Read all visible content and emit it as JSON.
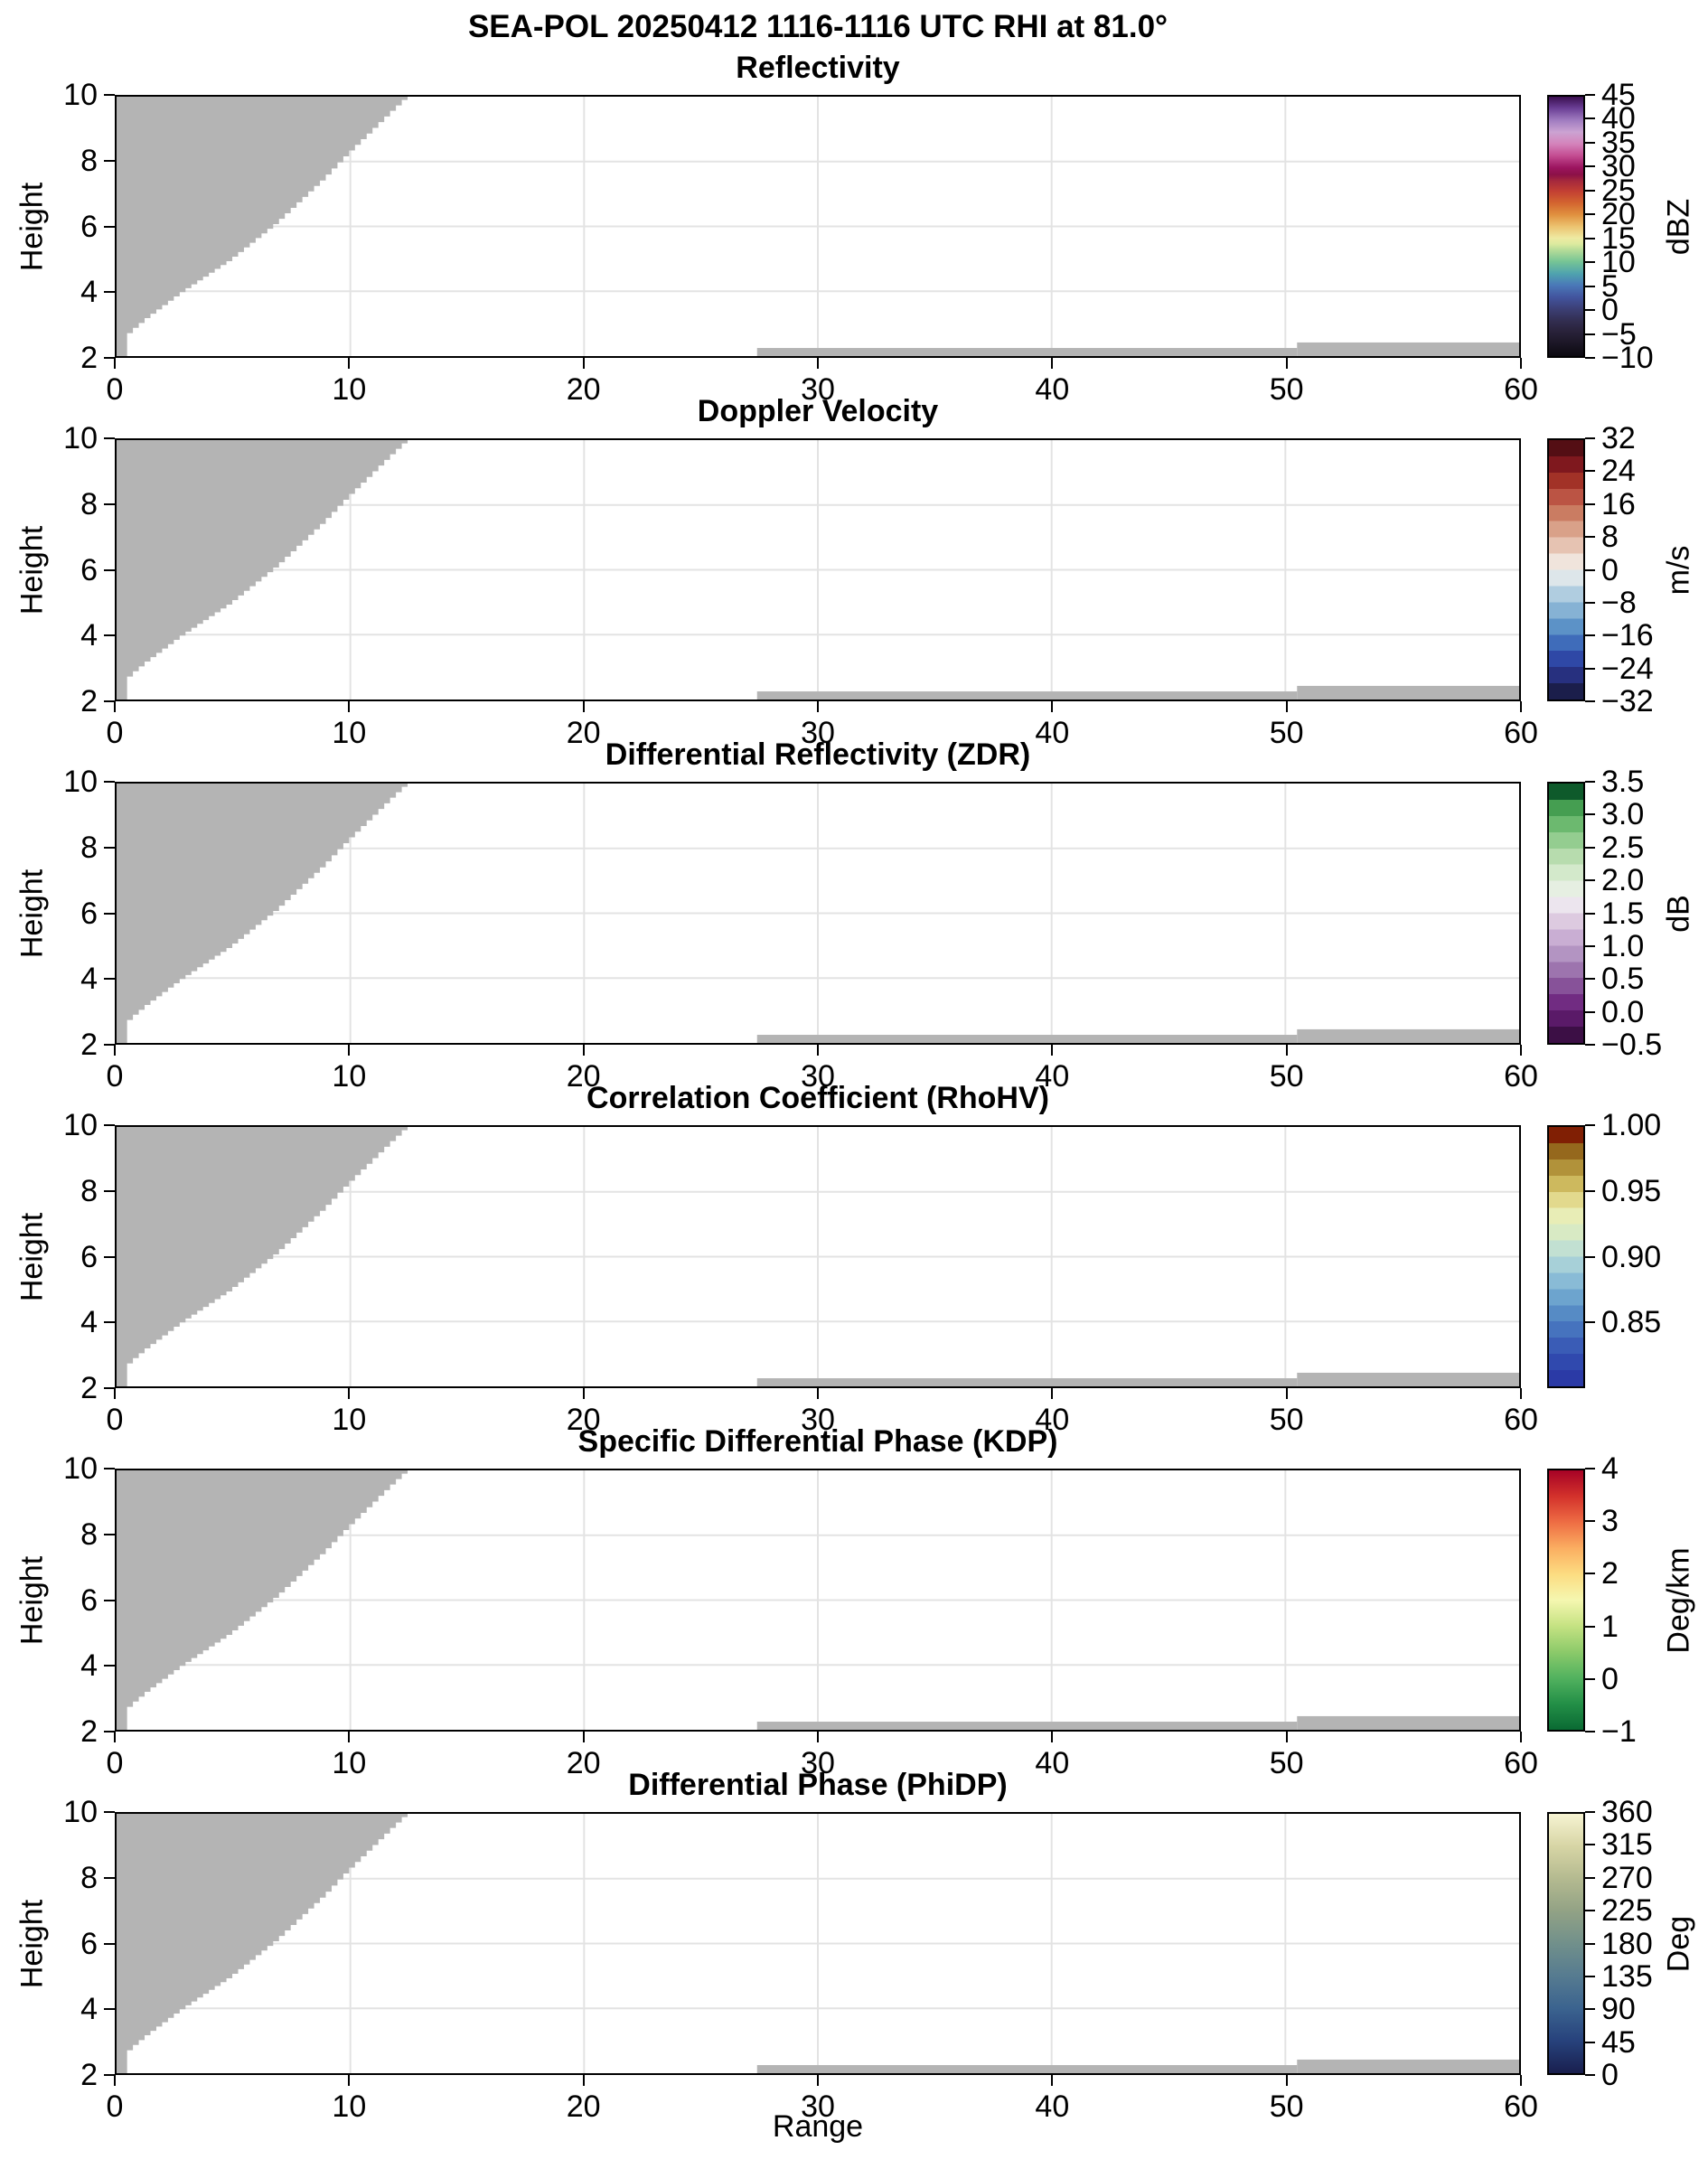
{
  "page": {
    "background": "#ffffff"
  },
  "figure_title": "SEA-POL 20250412 1116-1116 UTC RHI at 81.0°",
  "chart_data": {
    "type": "heatmap",
    "title": "SEA-POL 20250412 1116-1116 UTC RHI at 81.0°",
    "x_axis": {
      "label": "Range",
      "min": 0,
      "max": 60,
      "ticks": [
        0,
        10,
        20,
        30,
        40,
        50,
        60
      ],
      "tick_labels": [
        "0",
        "10",
        "20",
        "30",
        "40",
        "50",
        "60"
      ]
    },
    "y_axis": {
      "label": "Height",
      "min": 2,
      "max": 10,
      "ticks": [
        2,
        4,
        6,
        8,
        10
      ],
      "tick_labels": [
        "2",
        "4",
        "6",
        "8",
        "10"
      ]
    },
    "grid": {
      "color": "#e3e3e3",
      "x_lines": [
        10,
        20,
        30,
        40,
        50
      ],
      "y_lines": [
        4,
        6,
        8
      ]
    },
    "mask": {
      "color": "#b4b4b4",
      "wedge_foot": {
        "x0": 0.0,
        "x1": 0.45,
        "y": 2.0
      },
      "wedge_edge_points": [
        [
          0.45,
          2.5
        ],
        [
          0.75,
          2.75
        ],
        [
          1.5,
          3.2
        ],
        [
          3.0,
          4.0
        ],
        [
          5.0,
          4.95
        ],
        [
          7.0,
          6.1
        ],
        [
          9.0,
          7.45
        ],
        [
          10.0,
          8.2
        ],
        [
          11.0,
          8.9
        ],
        [
          12.0,
          9.6
        ],
        [
          12.6,
          10.0
        ]
      ],
      "step_dx": 0.25,
      "strips": [
        {
          "x0": 27.4,
          "x1": 50.5,
          "y0": 2.0,
          "y1": 2.25
        },
        {
          "x0": 50.5,
          "x1": 60.0,
          "y0": 2.0,
          "y1": 2.42
        }
      ]
    },
    "panels": [
      {
        "title": "Reflectivity",
        "colorbar": {
          "min": -10,
          "max": 45,
          "unit": "dBZ",
          "ticks": [
            {
              "value": 45,
              "label": "45"
            },
            {
              "value": 40,
              "label": "40"
            },
            {
              "value": 35,
              "label": "35"
            },
            {
              "value": 30,
              "label": "30"
            },
            {
              "value": 25,
              "label": "25"
            },
            {
              "value": 20,
              "label": "20"
            },
            {
              "value": 15,
              "label": "15"
            },
            {
              "value": 10,
              "label": "10"
            },
            {
              "value": 5,
              "label": "5"
            },
            {
              "value": 0,
              "label": "0"
            },
            {
              "value": -5,
              "label": "−5"
            },
            {
              "value": -10,
              "label": "−10"
            }
          ],
          "scale": {
            "mode": "smooth",
            "stops": [
              {
                "p": 0.0,
                "c": "#0c0a10"
              },
              {
                "p": 0.045,
                "c": "#1a1524"
              },
              {
                "p": 0.091,
                "c": "#282138"
              },
              {
                "p": 0.136,
                "c": "#322e51"
              },
              {
                "p": 0.182,
                "c": "#3c3f75"
              },
              {
                "p": 0.227,
                "c": "#42549e"
              },
              {
                "p": 0.273,
                "c": "#4a78b8"
              },
              {
                "p": 0.318,
                "c": "#4fa3ae"
              },
              {
                "p": 0.364,
                "c": "#76c495"
              },
              {
                "p": 0.409,
                "c": "#b6dc98"
              },
              {
                "p": 0.432,
                "c": "#dcea9f"
              },
              {
                "p": 0.455,
                "c": "#eeeaa2"
              },
              {
                "p": 0.5,
                "c": "#ecc26f"
              },
              {
                "p": 0.545,
                "c": "#e0913f"
              },
              {
                "p": 0.591,
                "c": "#d3642f"
              },
              {
                "p": 0.636,
                "c": "#c23f33"
              },
              {
                "p": 0.673,
                "c": "#a72a3c"
              },
              {
                "p": 0.7,
                "c": "#8c1048"
              },
              {
                "p": 0.727,
                "c": "#9c1560"
              },
              {
                "p": 0.773,
                "c": "#c44d92"
              },
              {
                "p": 0.818,
                "c": "#d483bb"
              },
              {
                "p": 0.864,
                "c": "#cba3d2"
              },
              {
                "p": 0.909,
                "c": "#a07cc0"
              },
              {
                "p": 0.955,
                "c": "#6b3f96"
              },
              {
                "p": 1.0,
                "c": "#3a0f50"
              }
            ]
          }
        }
      },
      {
        "title": "Doppler Velocity",
        "colorbar": {
          "min": -32,
          "max": 32,
          "unit": "m/s",
          "ticks": [
            {
              "value": 32,
              "label": "32"
            },
            {
              "value": 24,
              "label": "24"
            },
            {
              "value": 16,
              "label": "16"
            },
            {
              "value": 8,
              "label": "8"
            },
            {
              "value": 0,
              "label": "0"
            },
            {
              "value": -8,
              "label": "−8"
            },
            {
              "value": -16,
              "label": "−16"
            },
            {
              "value": -24,
              "label": "−24"
            },
            {
              "value": -32,
              "label": "−32"
            }
          ],
          "scale": {
            "mode": "steps",
            "colors": [
              "#1b1e4b",
              "#27307f",
              "#2f48a6",
              "#3f6cba",
              "#5c92c7",
              "#86b2d4",
              "#b0cde0",
              "#dde6ea",
              "#f0e4dc",
              "#e6c3b2",
              "#d9a189",
              "#ca7c62",
              "#bb5444",
              "#a23227",
              "#7f181e",
              "#540e14"
            ]
          }
        }
      },
      {
        "title": "Differential Reflectivity (ZDR)",
        "colorbar": {
          "min": -0.5,
          "max": 3.5,
          "unit": "dB",
          "ticks": [
            {
              "value": 3.5,
              "label": "3.5"
            },
            {
              "value": 3.0,
              "label": "3.0"
            },
            {
              "value": 2.5,
              "label": "2.5"
            },
            {
              "value": 2.0,
              "label": "2.0"
            },
            {
              "value": 1.5,
              "label": "1.5"
            },
            {
              "value": 1.0,
              "label": "1.0"
            },
            {
              "value": 0.5,
              "label": "0.5"
            },
            {
              "value": 0.0,
              "label": "0.0"
            },
            {
              "value": -0.5,
              "label": "−0.5"
            }
          ],
          "scale": {
            "mode": "steps",
            "colors": [
              "#3c0f45",
              "#5a1a68",
              "#712c82",
              "#875299",
              "#9d74ae",
              "#b394c2",
              "#c9aed3",
              "#ddcae0",
              "#ece5ee",
              "#e6efe2",
              "#d3e9cb",
              "#b7dcae",
              "#94cd90",
              "#6cb96f",
              "#459e51",
              "#0e5a2b"
            ]
          }
        }
      },
      {
        "title": "Correlation Coefficient (RhoHV)",
        "colorbar": {
          "min": 0.8,
          "max": 1.0,
          "unit": "",
          "ticks": [
            {
              "value": 1.0,
              "label": "1.00"
            },
            {
              "value": 0.95,
              "label": "0.95"
            },
            {
              "value": 0.9,
              "label": "0.90"
            },
            {
              "value": 0.85,
              "label": "0.85"
            }
          ],
          "scale": {
            "mode": "steps",
            "colors": [
              "#2b3aa6",
              "#3049ae",
              "#3a5cb6",
              "#4673be",
              "#568bc5",
              "#6da4ce",
              "#89bbd6",
              "#a7d0d8",
              "#c2e0d2",
              "#d8eac4",
              "#e8edb6",
              "#e2d98d",
              "#cdb95e",
              "#b1923a",
              "#95681d",
              "#801f04"
            ]
          }
        }
      },
      {
        "title": "Specific Differential Phase (KDP)",
        "colorbar": {
          "min": -1,
          "max": 4,
          "unit": "Deg/km",
          "ticks": [
            {
              "value": 4,
              "label": "4"
            },
            {
              "value": 3,
              "label": "3"
            },
            {
              "value": 2,
              "label": "2"
            },
            {
              "value": 1,
              "label": "1"
            },
            {
              "value": 0,
              "label": "0"
            },
            {
              "value": -1,
              "label": "−1"
            }
          ],
          "scale": {
            "mode": "smooth",
            "stops": [
              {
                "p": 0.0,
                "c": "#0a6a33"
              },
              {
                "p": 0.1,
                "c": "#238f47"
              },
              {
                "p": 0.2,
                "c": "#52b25f"
              },
              {
                "p": 0.3,
                "c": "#8cca6a"
              },
              {
                "p": 0.4,
                "c": "#c5e282"
              },
              {
                "p": 0.5,
                "c": "#f5f7b0"
              },
              {
                "p": 0.6,
                "c": "#fcdc81"
              },
              {
                "p": 0.7,
                "c": "#fbae61"
              },
              {
                "p": 0.8,
                "c": "#ee6d44"
              },
              {
                "p": 0.9,
                "c": "#d3312b"
              },
              {
                "p": 1.0,
                "c": "#a60226"
              }
            ]
          }
        }
      },
      {
        "title": "Differential Phase (PhiDP)",
        "colorbar": {
          "min": 0,
          "max": 360,
          "unit": "Deg",
          "ticks": [
            {
              "value": 360,
              "label": "360"
            },
            {
              "value": 315,
              "label": "315"
            },
            {
              "value": 270,
              "label": "270"
            },
            {
              "value": 225,
              "label": "225"
            },
            {
              "value": 180,
              "label": "180"
            },
            {
              "value": 135,
              "label": "135"
            },
            {
              "value": 90,
              "label": "90"
            },
            {
              "value": 45,
              "label": "45"
            },
            {
              "value": 0,
              "label": "0"
            }
          ],
          "scale": {
            "mode": "smooth",
            "stops": [
              {
                "p": 0.0,
                "c": "#191f4e"
              },
              {
                "p": 0.125,
                "c": "#27427c"
              },
              {
                "p": 0.25,
                "c": "#3b638f"
              },
              {
                "p": 0.375,
                "c": "#567b90"
              },
              {
                "p": 0.5,
                "c": "#71908b"
              },
              {
                "p": 0.625,
                "c": "#92a285"
              },
              {
                "p": 0.75,
                "c": "#b4ba90"
              },
              {
                "p": 0.875,
                "c": "#d7d5a5"
              },
              {
                "p": 1.0,
                "c": "#f6f3d2"
              }
            ]
          }
        }
      }
    ]
  }
}
